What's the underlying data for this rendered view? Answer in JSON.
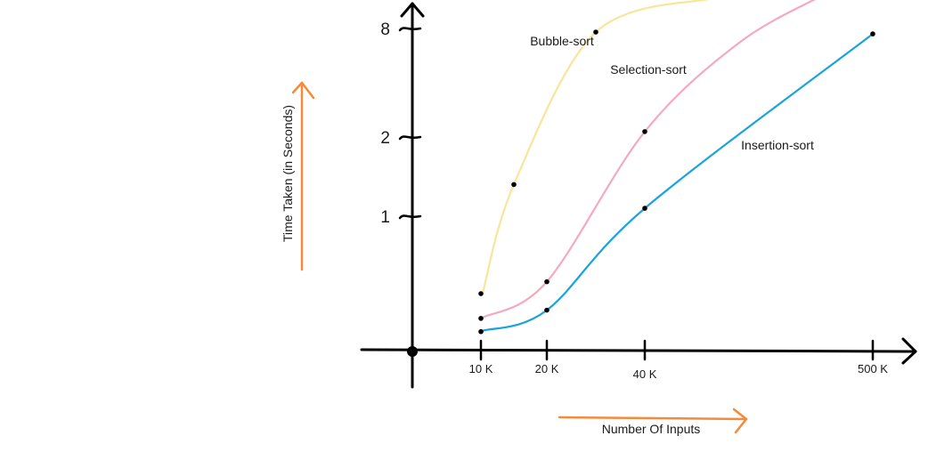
{
  "chart_data": {
    "type": "line",
    "title": "",
    "xlabel": "Number Of Inputs",
    "ylabel": "Time Taken (in Seconds)",
    "x_ticks": [
      "10 K",
      "20 K",
      "40 K",
      "500 K"
    ],
    "y_ticks": [
      "1",
      "2",
      "8"
    ],
    "grid": false,
    "series": [
      {
        "name": "Bubble-sort",
        "color": "#f7e69a",
        "points": [
          [
            "10 K",
            0.35
          ],
          [
            "15 K",
            1.4
          ],
          [
            "30 K",
            7.8
          ]
        ]
      },
      {
        "name": "Selection-sort",
        "color": "#f4a9bf",
        "points": [
          [
            "10 K",
            0.2
          ],
          [
            "20 K",
            0.45
          ],
          [
            "40 K",
            2.3
          ]
        ]
      },
      {
        "name": "Insertion-sort",
        "color": "#1aa3dc",
        "points": [
          [
            "10 K",
            0.12
          ],
          [
            "20 K",
            0.25
          ],
          [
            "40 K",
            1.1
          ],
          [
            "500 K",
            7.7
          ]
        ]
      }
    ]
  }
}
